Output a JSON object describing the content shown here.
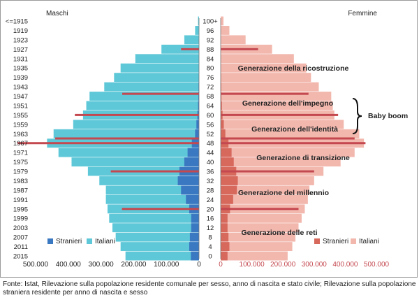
{
  "chart_data": {
    "type": "bar",
    "orientation": "horizontal-population-pyramid",
    "left_panel": {
      "title": "Maschi",
      "birth_year_ticks": [
        "<=1915",
        "1919",
        "1923",
        "1927",
        "1931",
        "1935",
        "1939",
        "1943",
        "1947",
        "1951",
        "1955",
        "1959",
        "1963",
        "1967",
        "1971",
        "1975",
        "1979",
        "1983",
        "1987",
        "1991",
        "1995",
        "1999",
        "2003",
        "2007",
        "2011",
        "2015"
      ],
      "x_ticks": [
        "500.000",
        "400.000",
        "300.000",
        "200.000",
        "100.000",
        "0"
      ],
      "xlim": [
        0,
        500000
      ],
      "legend": [
        "Stranieri",
        "Italiani"
      ]
    },
    "right_panel": {
      "title": "Femmine",
      "age_ticks": [
        "100+",
        "96",
        "92",
        "88",
        "84",
        "80",
        "76",
        "72",
        "68",
        "64",
        "60",
        "56",
        "52",
        "48",
        "44",
        "40",
        "36",
        "32",
        "28",
        "24",
        "20",
        "16",
        "12",
        "8",
        "4",
        "0"
      ],
      "x_ticks": [
        "0",
        "100.000",
        "200.000",
        "300.000",
        "400.000",
        "500.000"
      ],
      "xlim": [
        0,
        500000
      ],
      "legend": [
        "Stranieri",
        "Italiani"
      ]
    },
    "ages": [
      0,
      4,
      8,
      12,
      16,
      20,
      24,
      28,
      32,
      36,
      40,
      44,
      48,
      52,
      56,
      60,
      64,
      68,
      72,
      76,
      80,
      84,
      88,
      92,
      96,
      100
    ],
    "series": [
      {
        "name": "Italiani",
        "sex": "Maschi",
        "values": [
          225000,
          240000,
          255000,
          265000,
          275000,
          280000,
          285000,
          285000,
          305000,
          340000,
          390000,
          430000,
          465000,
          445000,
          385000,
          355000,
          345000,
          335000,
          290000,
          260000,
          240000,
          195000,
          115000,
          45000,
          12000,
          3000
        ]
      },
      {
        "name": "Stranieri",
        "sex": "Maschi",
        "values": [
          25000,
          30000,
          28000,
          24000,
          24000,
          30000,
          40000,
          55000,
          65000,
          60000,
          45000,
          35000,
          22000,
          12000,
          8000,
          5000,
          3000,
          2000,
          1500,
          1000,
          800,
          500,
          300,
          100,
          50,
          20
        ]
      },
      {
        "name": "Italiani",
        "sex": "Femmine",
        "values": [
          215000,
          230000,
          240000,
          250000,
          260000,
          270000,
          280000,
          285000,
          300000,
          330000,
          385000,
          430000,
          460000,
          445000,
          395000,
          365000,
          360000,
          355000,
          315000,
          290000,
          275000,
          235000,
          165000,
          80000,
          28000,
          9000
        ]
      },
      {
        "name": "Stranieri",
        "sex": "Femmine",
        "values": [
          22000,
          28000,
          25000,
          22000,
          22000,
          30000,
          40000,
          52000,
          55000,
          50000,
          42000,
          35000,
          25000,
          15000,
          10000,
          6000,
          4000,
          2500,
          2000,
          1500,
          1000,
          700,
          400,
          150,
          50,
          20
        ]
      }
    ],
    "generation_lines": {
      "ages": [
        88,
        69,
        50,
        60,
        48,
        36,
        20
      ],
      "left_extent": [
        55000,
        235000,
        440000,
        380000,
        555000,
        270000,
        236000
      ],
      "right_extent": [
        120000,
        282000,
        430000,
        377000,
        465000,
        300000,
        250000
      ]
    },
    "annotations": [
      "Generazione della ricostruzione",
      "Generazione dell'impegno",
      "Generazione dell'identità",
      "Generazione di transizione",
      "Generazione del millennio",
      "Generazione delle reti",
      "Baby boom"
    ],
    "colors": {
      "italiani_m": "#5fc8d8",
      "stranieri_m": "#3a78c2",
      "italiani_f": "#f2b7ad",
      "stranieri_f": "#d6685c",
      "lines": "#c4484f"
    }
  },
  "source": "Fonte: Istat, Rilevazione sulla popolazione residente comunale per sesso, anno di nascita e stato civile; Rilevazione sulla popolazione straniera residente per anno di nascita e sesso"
}
